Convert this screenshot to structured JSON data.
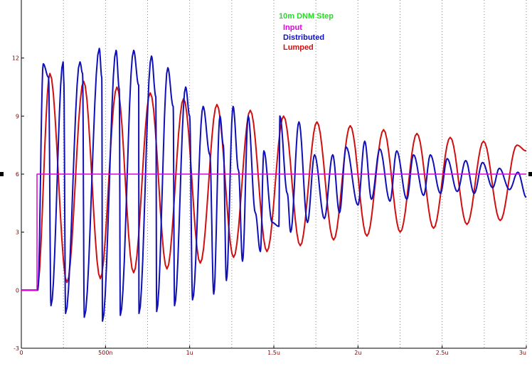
{
  "chart_data": {
    "type": "line",
    "title": "10m DNM Step",
    "title_color": "#22dd22",
    "xlim": [
      0,
      3e-06
    ],
    "ylim": [
      -3,
      15
    ],
    "x_ticks": [
      {
        "value": 0,
        "label": "0"
      },
      {
        "value": 5e-07,
        "label": "500n"
      },
      {
        "value": 1e-06,
        "label": "1u"
      },
      {
        "value": 1.5e-06,
        "label": "1.5u"
      },
      {
        "value": 2e-06,
        "label": "2u"
      },
      {
        "value": 2.5e-06,
        "label": "2.5u"
      },
      {
        "value": 3e-06,
        "label": "3u"
      }
    ],
    "y_ticks": [
      {
        "value": -3,
        "label": "-3"
      },
      {
        "value": 0,
        "label": "0"
      },
      {
        "value": 3,
        "label": "3"
      },
      {
        "value": 6,
        "label": "6"
      },
      {
        "value": 9,
        "label": "9"
      },
      {
        "value": 12,
        "label": "12"
      }
    ],
    "grid": "vertical dotted",
    "legend_position": "top-center",
    "background": "#ffffff",
    "axis_color": "#000000",
    "grid_color": "#888888",
    "series": [
      {
        "name": "Input",
        "color": "#e000e0",
        "x": [
          0,
          9.3e-08,
          9.3e-08,
          3e-06
        ],
        "y": [
          0,
          0,
          6,
          6
        ]
      },
      {
        "name": "Distributed",
        "color": "#1010b8",
        "x": [
          0,
          9.8e-08,
          1.3e-07,
          1.62e-07,
          1.76e-07,
          2.48e-07,
          2.52e-07,
          2.63e-07,
          3.48e-07,
          3.64e-07,
          3.74e-07,
          4.63e-07,
          4.78e-07,
          4.82e-07,
          5.63e-07,
          5.82e-07,
          5.88e-07,
          6.67e-07,
          6.97e-07,
          6.99e-07,
          7.73e-07,
          7.99e-07,
          8.04e-07,
          8.7e-07,
          9.02e-07,
          9.1e-07,
          9.76e-07,
          1e-06,
          1.017e-06,
          1.08e-06,
          1.12e-06,
          1.143e-06,
          1.18e-06,
          1.2e-06,
          1.218e-06,
          1.258e-06,
          1.29e-06,
          1.314e-06,
          1.348e-06,
          1.39e-06,
          1.42e-06,
          1.441e-06,
          1.49e-06,
          1.53e-06,
          1.536e-06,
          1.58e-06,
          1.6e-06,
          1.649e-06,
          1.7e-06,
          1.742e-06,
          1.8e-06,
          1.85e-06,
          1.89e-06,
          1.93e-06,
          2e-06,
          2.04e-06,
          2.08e-06,
          2.13e-06,
          2.19e-06,
          2.23e-06,
          2.29e-06,
          2.33e-06,
          2.39e-06,
          2.43e-06,
          2.49e-06,
          2.53e-06,
          2.59e-06,
          2.64e-06,
          2.69e-06,
          2.74e-06,
          2.8e-06,
          2.84e-06,
          2.9e-06,
          2.95e-06,
          3e-06
        ],
        "y": [
          0,
          0,
          11.7,
          11,
          -0.8,
          11.8,
          10.9,
          -1.2,
          11.8,
          11.2,
          -1.4,
          12.5,
          11,
          -1.6,
          12.4,
          10.4,
          -1.3,
          12.4,
          10.6,
          -1.2,
          12.1,
          10,
          -1.1,
          11.5,
          9.5,
          -0.8,
          10.5,
          9,
          -0.5,
          9.5,
          7,
          -0.2,
          9,
          7.5,
          0.5,
          9.5,
          6.2,
          1.5,
          9,
          4,
          2,
          7.2,
          3.5,
          3.3,
          9,
          5,
          3,
          8.7,
          3.5,
          7,
          3.7,
          7,
          4,
          7.4,
          4.4,
          7.7,
          4.7,
          7.3,
          4.6,
          7.2,
          4.7,
          7,
          4.9,
          7,
          5,
          6.8,
          5.1,
          6.7,
          5,
          6.6,
          5.3,
          6.3,
          5.2,
          6.1,
          4.8
        ]
      },
      {
        "name": "Lumped",
        "color": "#d01010",
        "x": [
          0,
          9.3e-08,
          1.7e-07,
          2.71e-07,
          3.7e-07,
          4.69e-07,
          5.68e-07,
          6.67e-07,
          7.66e-07,
          8.65e-07,
          9.64e-07,
          1.063e-06,
          1.162e-06,
          1.261e-06,
          1.36e-06,
          1.459e-06,
          1.558e-06,
          1.657e-06,
          1.756e-06,
          1.855e-06,
          1.954e-06,
          2.053e-06,
          2.152e-06,
          2.251e-06,
          2.35e-06,
          2.449e-06,
          2.548e-06,
          2.647e-06,
          2.746e-06,
          2.845e-06,
          2.944e-06,
          3e-06
        ],
        "y": [
          0,
          0,
          11.2,
          0.4,
          10.8,
          0.6,
          10.5,
          0.9,
          10.2,
          1.1,
          9.9,
          1.4,
          9.6,
          1.7,
          9.3,
          2.0,
          9.0,
          2.3,
          8.7,
          2.6,
          8.5,
          2.8,
          8.3,
          3.0,
          8.1,
          3.2,
          7.9,
          3.4,
          7.7,
          3.6,
          7.5,
          7.2
        ]
      }
    ]
  }
}
